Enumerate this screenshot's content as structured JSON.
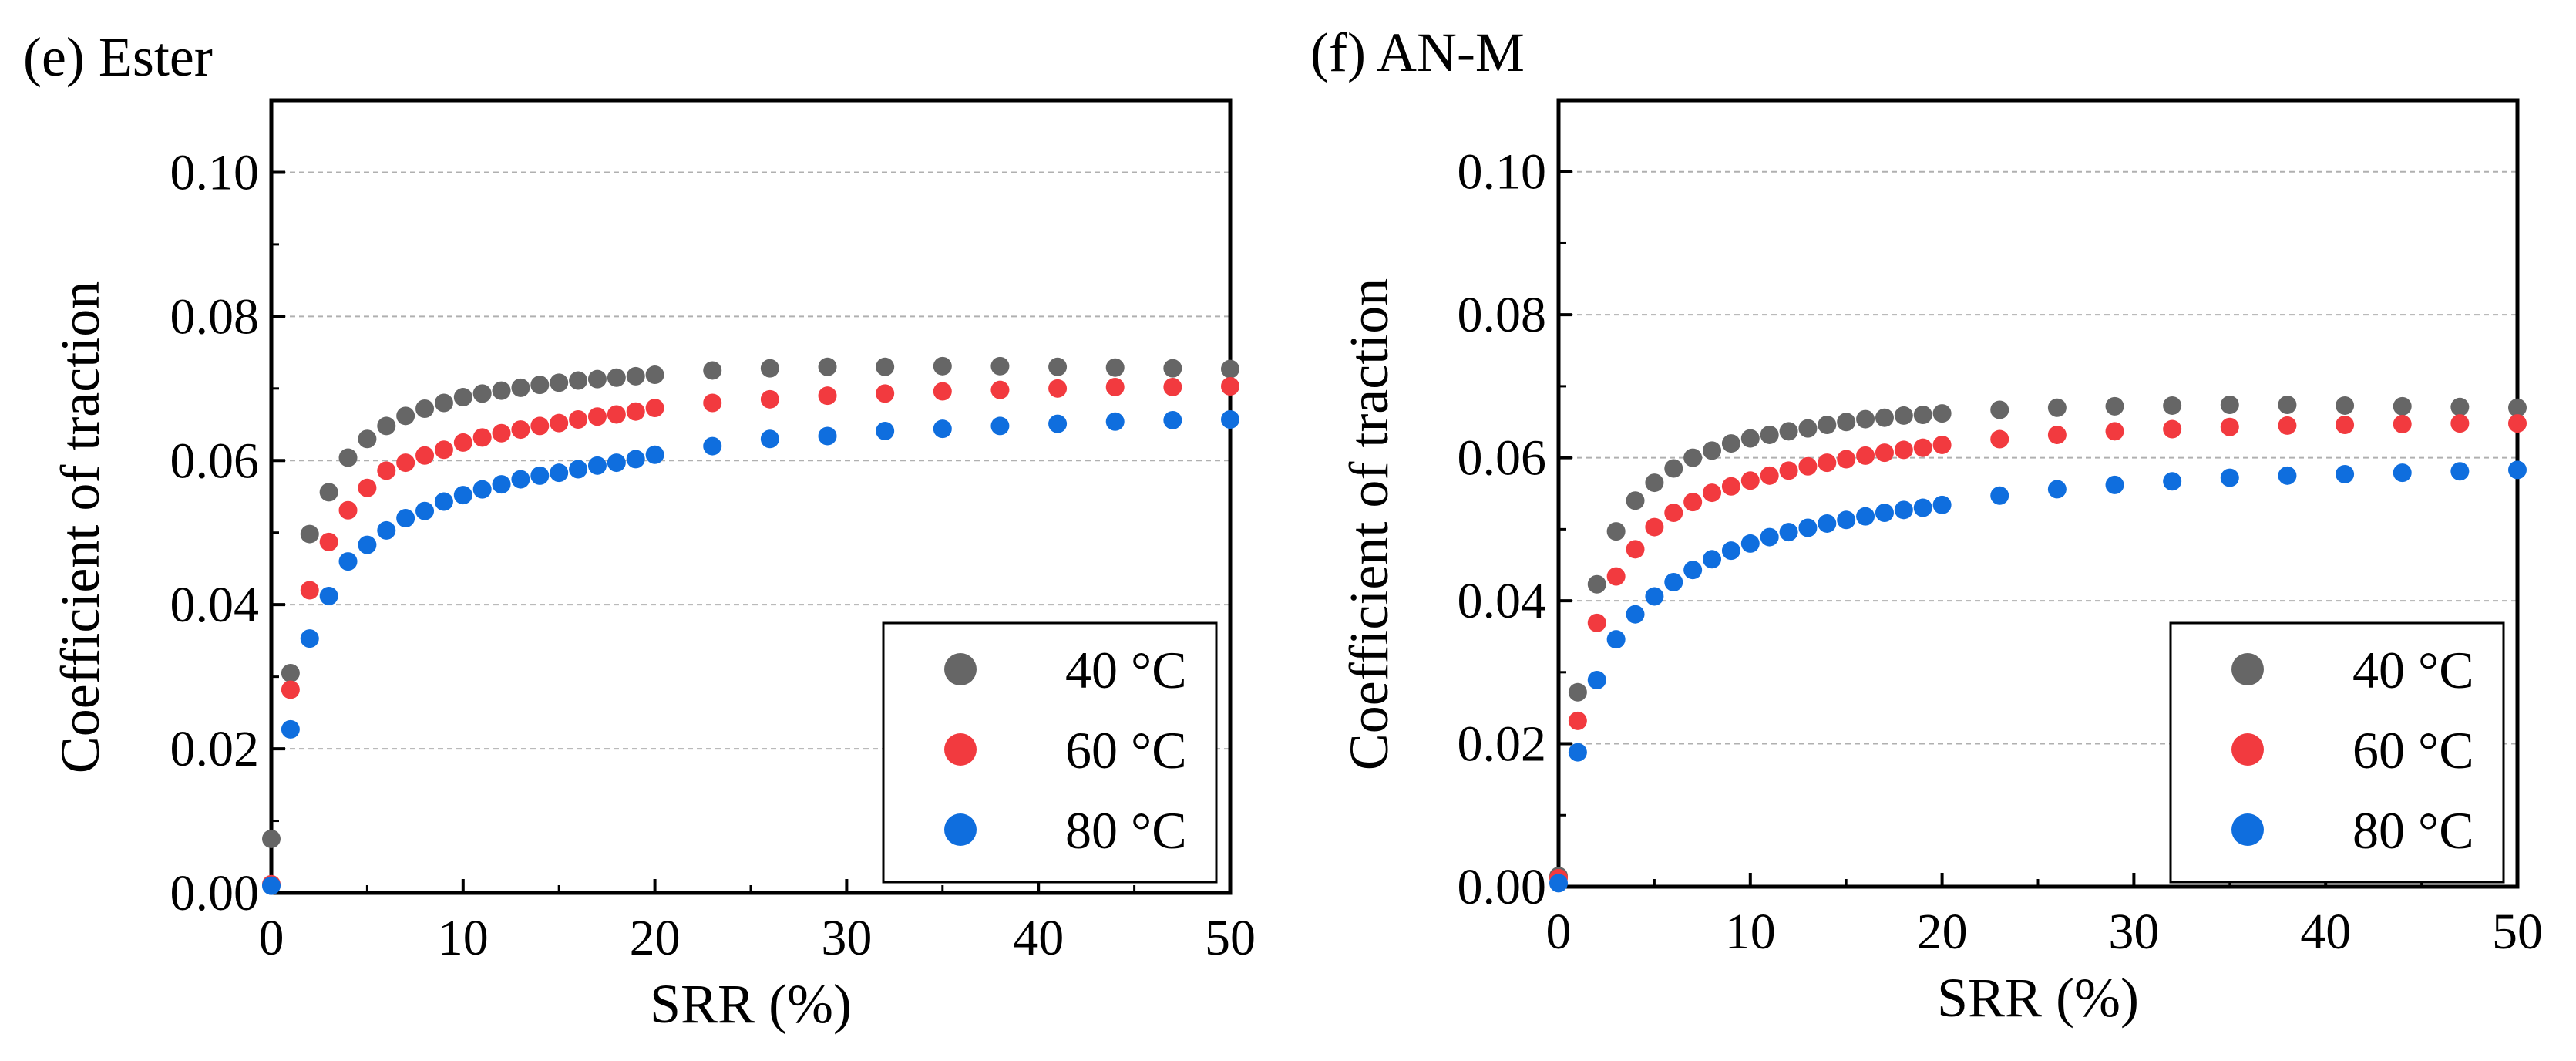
{
  "chart_data": [
    {
      "panel_label": "(e) Ester",
      "type": "scatter",
      "xlabel": "SRR (%)",
      "ylabel": "Coefficient of traction",
      "xlim": [
        0,
        50
      ],
      "ylim": [
        0,
        0.11
      ],
      "xticks": [
        0,
        10,
        20,
        30,
        40,
        50
      ],
      "xtick_labels": [
        "0",
        "10",
        "20",
        "30",
        "40",
        "50"
      ],
      "yticks": [
        0,
        0.02,
        0.04,
        0.06,
        0.08,
        0.1
      ],
      "ytick_labels": [
        "0.00",
        "0.02",
        "0.04",
        "0.06",
        "0.08",
        "0.10"
      ],
      "grid": "horizontal dashed",
      "legend_position": "bottom-right",
      "x": [
        0,
        1,
        2,
        3,
        4,
        5,
        6,
        7,
        8,
        9,
        10,
        11,
        12,
        13,
        14,
        15,
        16,
        17,
        18,
        19,
        20,
        23,
        26,
        29,
        32,
        35,
        38,
        41,
        44,
        47,
        50
      ],
      "series": [
        {
          "name": "40 °C",
          "color": "#666666",
          "values": [
            0.0075,
            0.0305,
            0.0498,
            0.0556,
            0.0604,
            0.063,
            0.0648,
            0.0662,
            0.0672,
            0.068,
            0.0688,
            0.0693,
            0.0697,
            0.0701,
            0.0705,
            0.0708,
            0.0711,
            0.0713,
            0.0715,
            0.0717,
            0.0719,
            0.0725,
            0.0728,
            0.073,
            0.073,
            0.0731,
            0.0731,
            0.073,
            0.0729,
            0.0728,
            0.0727
          ]
        },
        {
          "name": "60 °C",
          "color": "#f23a3f",
          "values": [
            0.0012,
            0.0282,
            0.042,
            0.0487,
            0.0531,
            0.0562,
            0.0586,
            0.0597,
            0.0607,
            0.0615,
            0.0625,
            0.0632,
            0.0638,
            0.0643,
            0.0648,
            0.0652,
            0.0657,
            0.0661,
            0.0664,
            0.0668,
            0.0673,
            0.068,
            0.0685,
            0.069,
            0.0693,
            0.0696,
            0.0698,
            0.07,
            0.0702,
            0.0702,
            0.0703
          ]
        },
        {
          "name": "80 °C",
          "color": "#0f6ede",
          "values": [
            0.001,
            0.0227,
            0.0353,
            0.0412,
            0.046,
            0.0483,
            0.0503,
            0.052,
            0.053,
            0.0543,
            0.0552,
            0.056,
            0.0567,
            0.0574,
            0.0579,
            0.0583,
            0.0588,
            0.0593,
            0.0597,
            0.0602,
            0.0608,
            0.062,
            0.063,
            0.0634,
            0.0641,
            0.0644,
            0.0648,
            0.0651,
            0.0654,
            0.0656,
            0.0657
          ]
        }
      ]
    },
    {
      "panel_label": "(f) AN-M",
      "type": "scatter",
      "xlabel": "SRR (%)",
      "ylabel": "Coefficient of traction",
      "xlim": [
        0,
        50
      ],
      "ylim": [
        0,
        0.11
      ],
      "xticks": [
        0,
        10,
        20,
        30,
        40,
        50
      ],
      "xtick_labels": [
        "0",
        "10",
        "20",
        "30",
        "40",
        "50"
      ],
      "yticks": [
        0,
        0.02,
        0.04,
        0.06,
        0.08,
        0.1
      ],
      "ytick_labels": [
        "0.00",
        "0.02",
        "0.04",
        "0.06",
        "0.08",
        "0.10"
      ],
      "grid": "horizontal dashed",
      "legend_position": "bottom-right",
      "x": [
        0,
        1,
        2,
        3,
        4,
        5,
        6,
        7,
        8,
        9,
        10,
        11,
        12,
        13,
        14,
        15,
        16,
        17,
        18,
        19,
        20,
        23,
        26,
        29,
        32,
        35,
        38,
        41,
        44,
        47,
        50
      ],
      "series": [
        {
          "name": "40 °C",
          "color": "#666666",
          "values": [
            0.0015,
            0.0272,
            0.0423,
            0.0497,
            0.054,
            0.0565,
            0.0585,
            0.06,
            0.061,
            0.062,
            0.0627,
            0.0632,
            0.0637,
            0.0641,
            0.0646,
            0.065,
            0.0654,
            0.0656,
            0.0659,
            0.066,
            0.0662,
            0.0667,
            0.067,
            0.0672,
            0.0673,
            0.0674,
            0.0674,
            0.0673,
            0.0672,
            0.0671,
            0.067
          ]
        },
        {
          "name": "60 °C",
          "color": "#f23a3f",
          "values": [
            0.0012,
            0.0232,
            0.0369,
            0.0434,
            0.0472,
            0.0503,
            0.0523,
            0.0538,
            0.0551,
            0.056,
            0.0568,
            0.0575,
            0.0582,
            0.0588,
            0.0593,
            0.0598,
            0.0603,
            0.0607,
            0.0611,
            0.0614,
            0.0618,
            0.0626,
            0.0632,
            0.0637,
            0.064,
            0.0643,
            0.0645,
            0.0646,
            0.0647,
            0.0648,
            0.0648
          ]
        },
        {
          "name": "80 °C",
          "color": "#0f6ede",
          "values": [
            0.0005,
            0.0188,
            0.0289,
            0.0346,
            0.0381,
            0.0406,
            0.0426,
            0.0443,
            0.0458,
            0.047,
            0.048,
            0.0489,
            0.0496,
            0.0502,
            0.0508,
            0.0513,
            0.0518,
            0.0523,
            0.0527,
            0.053,
            0.0534,
            0.0547,
            0.0556,
            0.0562,
            0.0567,
            0.0572,
            0.0575,
            0.0577,
            0.0579,
            0.0581,
            0.0583
          ]
        }
      ]
    }
  ]
}
